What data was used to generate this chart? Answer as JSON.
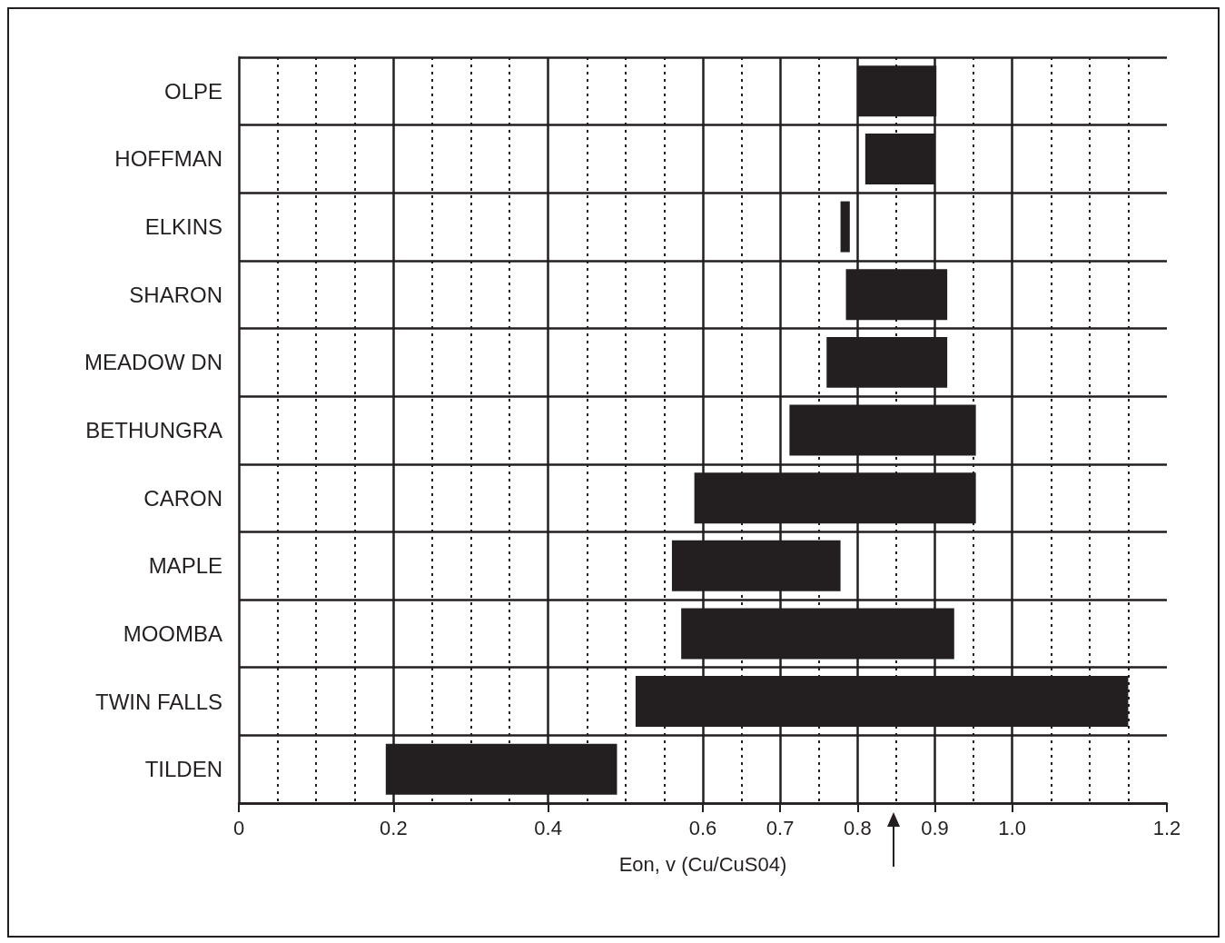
{
  "chart_data": {
    "type": "bar",
    "orientation": "horizontal",
    "xlabel": "Eon, v (Cu/CuS04)",
    "categories": [
      "OLPE",
      "HOFFMAN",
      "ELKINS",
      "SHARON",
      "MEADOW DN",
      "BETHUNGRA",
      "CARON",
      "MAPLE",
      "MOOMBA",
      "TWIN FALLS",
      "TILDEN"
    ],
    "base": [
      0.8,
      0.81,
      0.778,
      0.785,
      0.76,
      0.712,
      0.589,
      0.56,
      0.572,
      0.513,
      0.19
    ],
    "values": [
      0.102,
      0.09,
      0.012,
      0.131,
      0.156,
      0.241,
      0.364,
      0.218,
      0.353,
      0.637,
      0.299
    ],
    "color": "#231f20",
    "xlim": [
      0,
      1.2
    ],
    "xticks": [
      0,
      {
        "value": 0.05,
        "label": null
      },
      {
        "value": 0.1,
        "label": null
      },
      {
        "value": 0.15,
        "label": null
      },
      0.2,
      {
        "value": 0.25,
        "label": null
      },
      {
        "value": 0.3,
        "label": null
      },
      {
        "value": 0.35,
        "label": null
      },
      0.4,
      {
        "value": 0.45,
        "label": null
      },
      {
        "value": 0.5,
        "label": null
      },
      {
        "value": 0.55,
        "label": null
      },
      0.6,
      {
        "value": 0.65,
        "label": null
      },
      0.7,
      {
        "value": 0.75,
        "label": null
      },
      0.8,
      {
        "value": 0.85,
        "label": null
      },
      0.9,
      {
        "value": 0.95,
        "label": null
      },
      {
        "value": 1,
        "label": "1.0"
      },
      {
        "value": 1.05,
        "label": null
      },
      {
        "value": 1.1,
        "label": null
      },
      {
        "value": 1.15,
        "label": null
      },
      1.2
    ],
    "grid": true
  }
}
